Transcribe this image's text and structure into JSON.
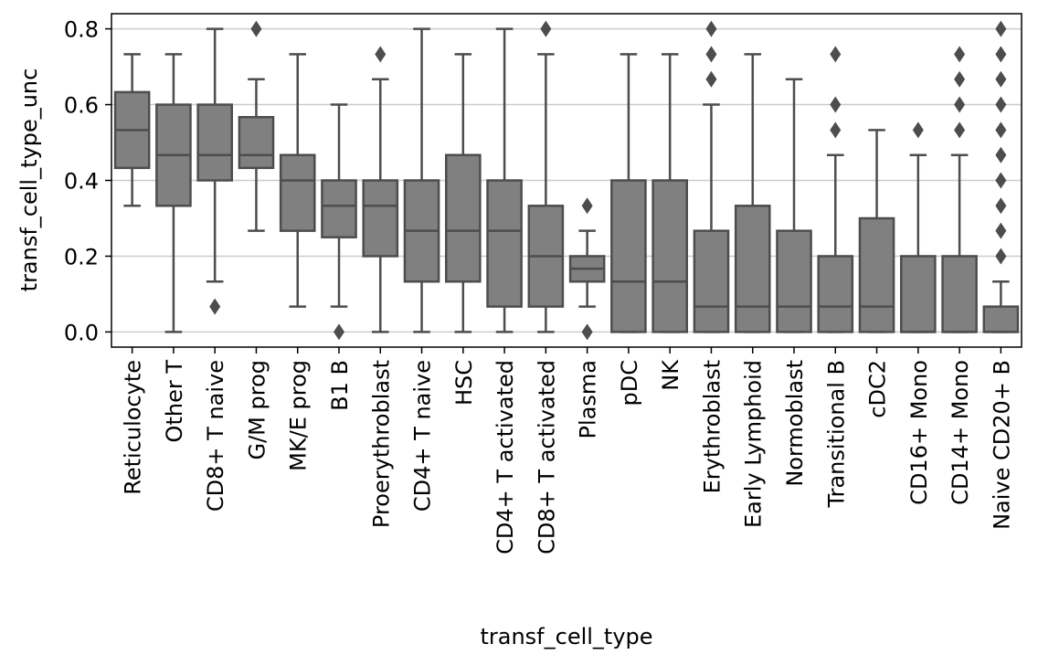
{
  "chart_data": {
    "type": "box",
    "xlabel": "transf_cell_type",
    "ylabel": "transf_cell_type_unc",
    "categories": [
      "Reticulocyte",
      "Other T",
      "CD8+ T naive",
      "G/M prog",
      "MK/E prog",
      "B1 B",
      "Proerythroblast",
      "CD4+ T naive",
      "HSC",
      "CD4+ T activated",
      "CD8+ T activated",
      "Plasma",
      "pDC",
      "NK",
      "Erythroblast",
      "Early Lymphoid",
      "Normoblast",
      "Transitional B",
      "cDC2",
      "CD16+ Mono",
      "CD14+ Mono",
      "Naive CD20+ B"
    ],
    "boxes": [
      {
        "low": 0.333,
        "q1": 0.433,
        "median": 0.533,
        "q3": 0.633,
        "high": 0.733,
        "outliers": []
      },
      {
        "low": 0,
        "q1": 0.333,
        "median": 0.467,
        "q3": 0.6,
        "high": 0.733,
        "outliers": []
      },
      {
        "low": 0.133,
        "q1": 0.4,
        "median": 0.467,
        "q3": 0.6,
        "high": 0.8,
        "outliers": [
          0.067
        ]
      },
      {
        "low": 0.267,
        "q1": 0.433,
        "median": 0.467,
        "q3": 0.567,
        "high": 0.667,
        "outliers": [
          0.8
        ]
      },
      {
        "low": 0.067,
        "q1": 0.267,
        "median": 0.4,
        "q3": 0.467,
        "high": 0.733,
        "outliers": []
      },
      {
        "low": 0.067,
        "q1": 0.25,
        "median": 0.333,
        "q3": 0.4,
        "high": 0.6,
        "outliers": [
          0
        ]
      },
      {
        "low": 0,
        "q1": 0.2,
        "median": 0.333,
        "q3": 0.4,
        "high": 0.667,
        "outliers": [
          0.733
        ]
      },
      {
        "low": 0,
        "q1": 0.133,
        "median": 0.267,
        "q3": 0.4,
        "high": 0.8,
        "outliers": []
      },
      {
        "low": 0,
        "q1": 0.133,
        "median": 0.267,
        "q3": 0.467,
        "high": 0.733,
        "outliers": []
      },
      {
        "low": 0,
        "q1": 0.067,
        "median": 0.267,
        "q3": 0.4,
        "high": 0.8,
        "outliers": []
      },
      {
        "low": 0,
        "q1": 0.067,
        "median": 0.2,
        "q3": 0.333,
        "high": 0.733,
        "outliers": [
          0.8
        ]
      },
      {
        "low": 0.067,
        "q1": 0.133,
        "median": 0.167,
        "q3": 0.2,
        "high": 0.267,
        "outliers": [
          0.333,
          0
        ]
      },
      {
        "low": 0,
        "q1": 0,
        "median": 0.133,
        "q3": 0.4,
        "high": 0.733,
        "outliers": []
      },
      {
        "low": 0,
        "q1": 0,
        "median": 0.133,
        "q3": 0.4,
        "high": 0.733,
        "outliers": []
      },
      {
        "low": 0,
        "q1": 0,
        "median": 0.067,
        "q3": 0.267,
        "high": 0.6,
        "outliers": [
          0.667,
          0.733,
          0.8
        ]
      },
      {
        "low": 0,
        "q1": 0,
        "median": 0.067,
        "q3": 0.333,
        "high": 0.733,
        "outliers": []
      },
      {
        "low": 0,
        "q1": 0,
        "median": 0.067,
        "q3": 0.267,
        "high": 0.667,
        "outliers": []
      },
      {
        "low": 0,
        "q1": 0,
        "median": 0.067,
        "q3": 0.2,
        "high": 0.467,
        "outliers": [
          0.533,
          0.6,
          0.733
        ]
      },
      {
        "low": 0,
        "q1": 0,
        "median": 0.067,
        "q3": 0.3,
        "high": 0.533,
        "outliers": []
      },
      {
        "low": 0,
        "q1": 0,
        "median": 0,
        "q3": 0.2,
        "high": 0.467,
        "outliers": [
          0.533
        ]
      },
      {
        "low": 0,
        "q1": 0,
        "median": 0,
        "q3": 0.2,
        "high": 0.467,
        "outliers": [
          0.533,
          0.6,
          0.667,
          0.733
        ]
      },
      {
        "low": 0,
        "q1": 0,
        "median": 0,
        "q3": 0.067,
        "high": 0.133,
        "outliers": [
          0.2,
          0.267,
          0.333,
          0.4,
          0.467,
          0.533,
          0.6,
          0.667,
          0.733,
          0.8
        ]
      }
    ],
    "color": "#808080",
    "ylim": [
      -0.04,
      0.84
    ],
    "yticks": [
      {
        "value": 0,
        "label": "0.0"
      },
      0.2,
      0.4,
      0.6,
      0.8
    ],
    "grid": true
  }
}
